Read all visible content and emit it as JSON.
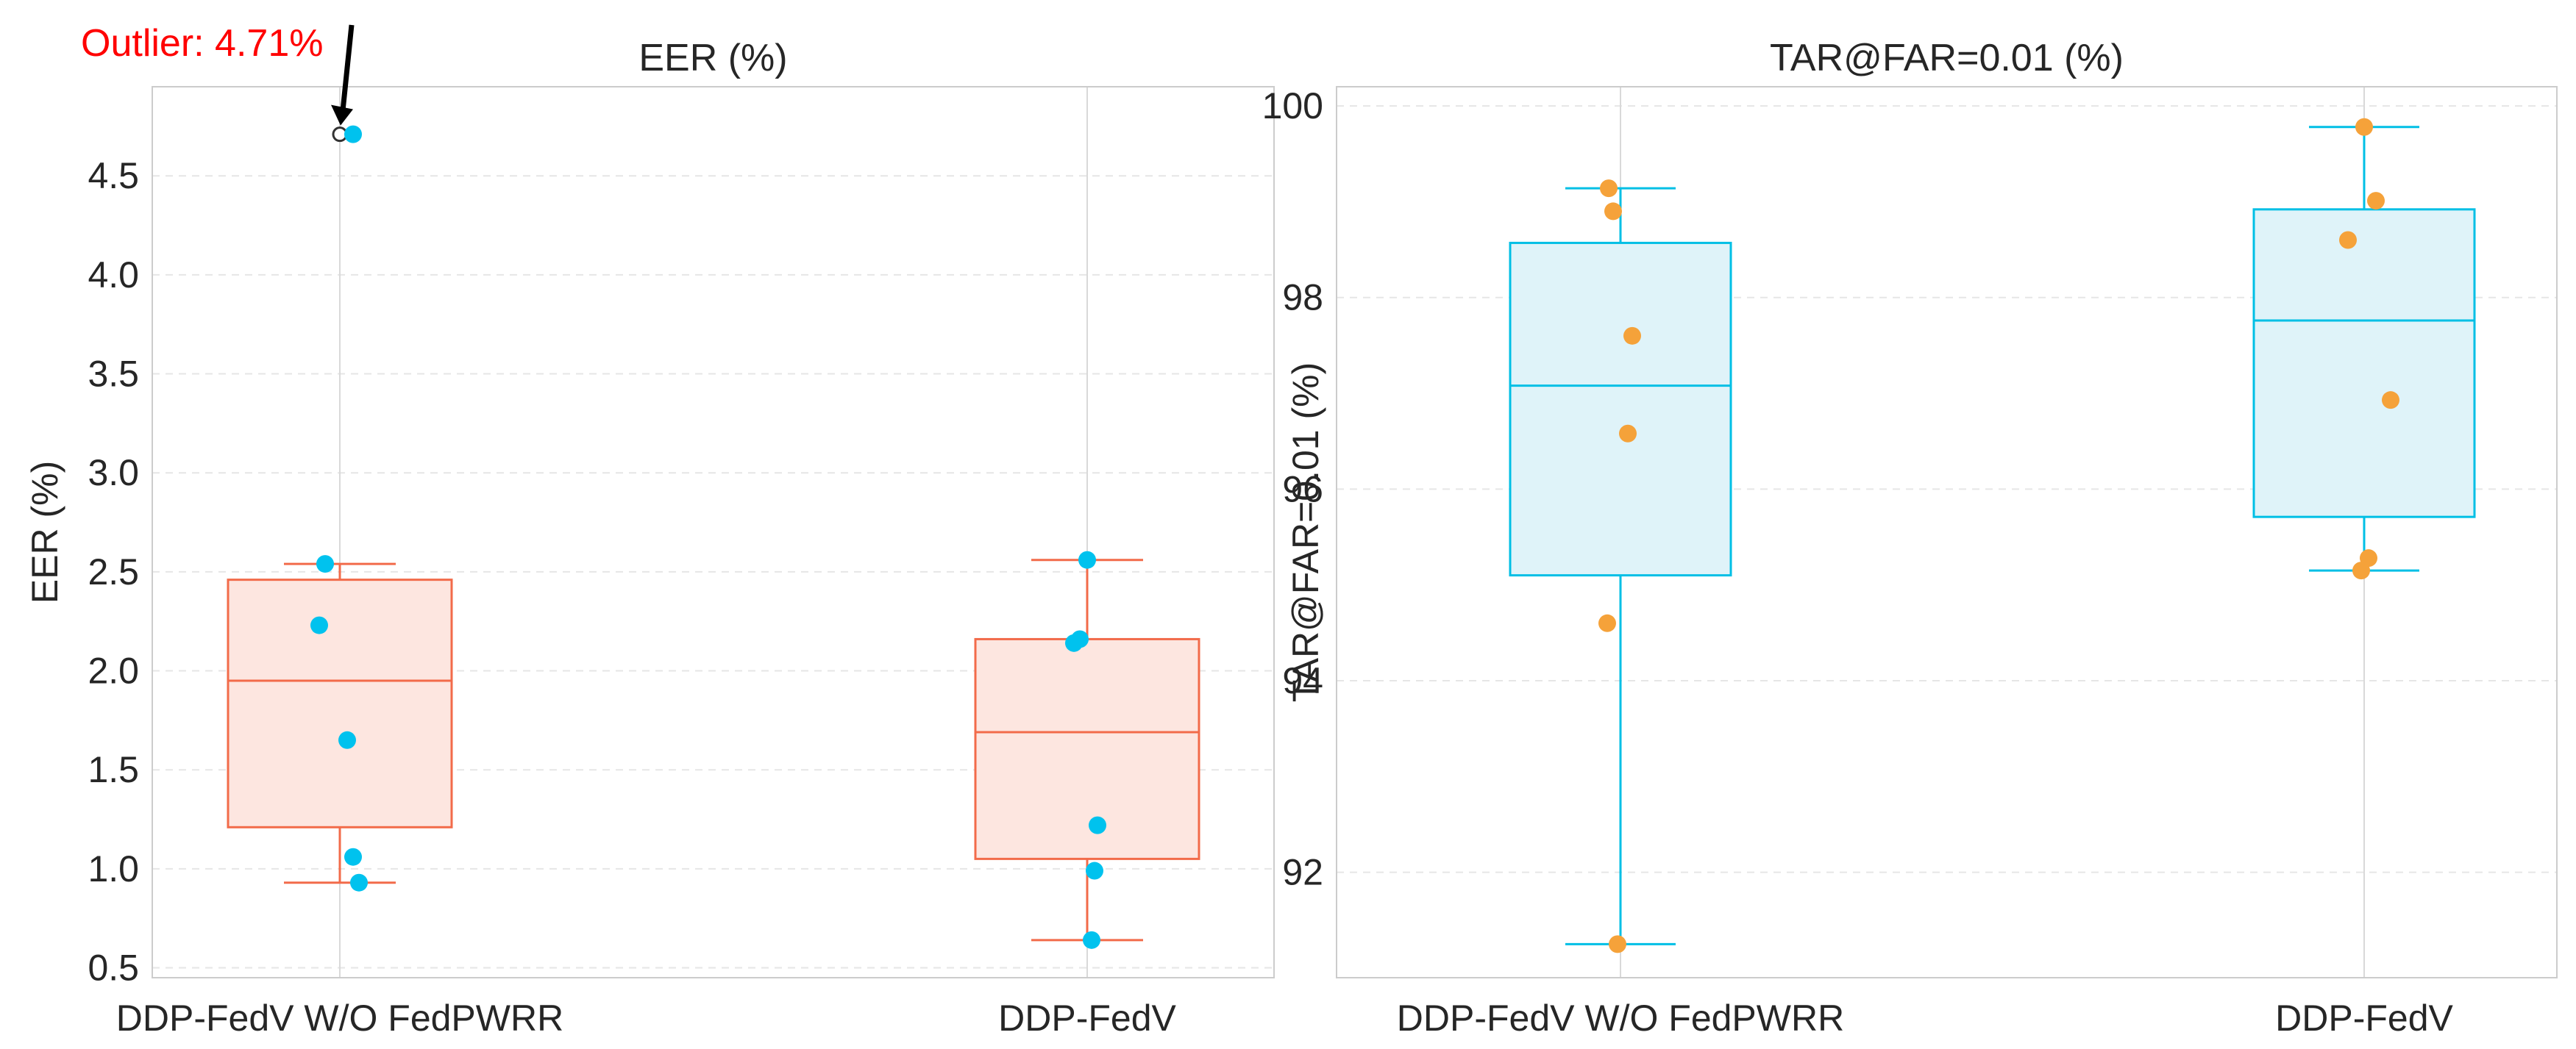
{
  "chart_data": [
    {
      "type": "box",
      "title": "EER (%)",
      "xlabel": "",
      "ylabel": "EER (%)",
      "categories": [
        "DDP-FedV W/O FedPWRR",
        "DDP-FedV"
      ],
      "ylim": [
        0.45,
        4.95
      ],
      "yticks": [
        0.5,
        1.0,
        1.5,
        2.0,
        2.5,
        3.0,
        3.5,
        4.0,
        4.5
      ],
      "ytick_labels": [
        "0.5",
        "1.0",
        "1.5",
        "2.0",
        "2.5",
        "3.0",
        "3.5",
        "4.0",
        "4.5"
      ],
      "grid": true,
      "box_color": "#f26b4a",
      "box_fill": "#fde6e0",
      "point_color": "#00c2ee",
      "boxes": [
        {
          "category": "DDP-FedV W/O FedPWRR",
          "whisker_low": 0.93,
          "q1": 1.21,
          "median": 1.95,
          "q3": 2.46,
          "whisker_high": 2.54,
          "outliers": [
            4.71
          ]
        },
        {
          "category": "DDP-FedV",
          "whisker_low": 0.64,
          "q1": 1.05,
          "median": 1.69,
          "q3": 2.16,
          "whisker_high": 2.56,
          "outliers": []
        }
      ],
      "points": [
        {
          "category": "DDP-FedV W/O FedPWRR",
          "values": [
            4.71,
            2.54,
            2.23,
            1.65,
            1.06,
            0.93
          ]
        },
        {
          "category": "DDP-FedV",
          "values": [
            2.56,
            2.16,
            2.14,
            1.22,
            0.99,
            0.64
          ]
        }
      ],
      "annotation": {
        "text": "Outlier: 4.71%",
        "value": 4.71,
        "color": "#ff0000"
      }
    },
    {
      "type": "box",
      "title": "TAR@FAR=0.01 (%)",
      "xlabel": "",
      "ylabel": "TAR@FAR=0.01 (%)",
      "categories": [
        "DDP-FedV W/O FedPWRR",
        "DDP-FedV"
      ],
      "ylim": [
        90.9,
        100.2
      ],
      "yticks": [
        92,
        94,
        96,
        98,
        100
      ],
      "ytick_labels": [
        "92",
        "94",
        "96",
        "98",
        "100"
      ],
      "grid": true,
      "box_color": "#00bfe5",
      "box_fill": "#dff3f9",
      "point_color": "#f5a23a",
      "boxes": [
        {
          "category": "DDP-FedV W/O FedPWRR",
          "whisker_low": 91.25,
          "q1": 95.1,
          "median": 97.08,
          "q3": 98.57,
          "whisker_high": 99.14,
          "outliers": []
        },
        {
          "category": "DDP-FedV",
          "whisker_low": 95.15,
          "q1": 95.71,
          "median": 97.76,
          "q3": 98.92,
          "whisker_high": 99.78,
          "outliers": []
        }
      ],
      "points": [
        {
          "category": "DDP-FedV W/O FedPWRR",
          "values": [
            99.14,
            98.9,
            97.6,
            96.58,
            94.6,
            91.25
          ]
        },
        {
          "category": "DDP-FedV",
          "values": [
            99.78,
            99.01,
            98.6,
            96.93,
            95.28,
            95.15
          ]
        }
      ]
    }
  ]
}
